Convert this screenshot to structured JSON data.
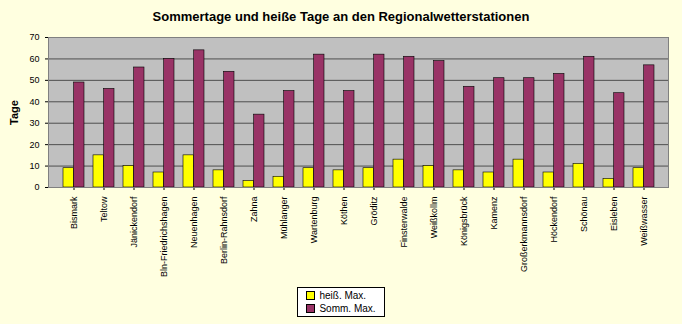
{
  "chart_data": {
    "type": "bar",
    "title": "Sommertage und heiße Tage an den Regionalwetterstationen",
    "y_label": "Tage",
    "categories": [
      "Bismark",
      "Teltow",
      "Jänickendorf",
      "Bln-Friedrichshagen",
      "Neuenhagen",
      "Berlin-Rahnsdorf",
      "Zahna",
      "Mühlanger",
      "Wartenburg",
      "Köthen",
      "Gröditz",
      "Finsterwalde",
      "Weißkollm",
      "Königsbrück",
      "Kamenz",
      "Großerkmannsdorf",
      "Höckendorf",
      "Schönau",
      "Eisleben",
      "Weißwasser"
    ],
    "series": [
      {
        "name": "heiß. Max.",
        "color": "#ffff00",
        "values": [
          9,
          15,
          10,
          7,
          15,
          8,
          3,
          5,
          9,
          8,
          9,
          13,
          10,
          8,
          7,
          13,
          7,
          11,
          4,
          9
        ]
      },
      {
        "name": "Somm. Max.",
        "color": "#993366",
        "values": [
          49,
          46,
          56,
          60,
          64,
          54,
          34,
          45,
          62,
          45,
          62,
          61,
          59,
          47,
          51,
          51,
          53,
          61,
          44,
          57
        ]
      }
    ],
    "ylim": [
      0,
      70
    ],
    "yticks": [
      0,
      10,
      20,
      30,
      40,
      50,
      60,
      70
    ],
    "grid": true,
    "legend": "bottom"
  }
}
